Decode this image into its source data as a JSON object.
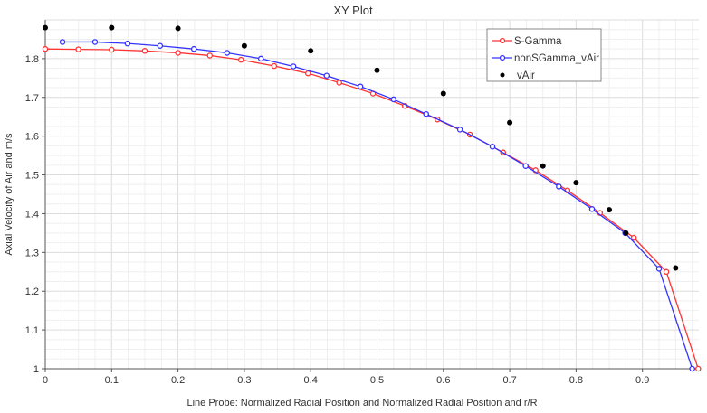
{
  "chart_data": {
    "type": "line",
    "title": "XY Plot",
    "xlabel": "Line Probe: Normalized Radial Position and Normalized Radial Position and r/R",
    "ylabel": "Axial Velocity of Air and m/s",
    "xlim": [
      0,
      0.985
    ],
    "ylim": [
      1.0,
      1.9
    ],
    "xticks": [
      "0",
      "0.1",
      "0.2",
      "0.3",
      "0.4",
      "0.5",
      "0.6",
      "0.7",
      "0.8",
      "0.9"
    ],
    "yticks": [
      "1",
      "1.1",
      "1.2",
      "1.3",
      "1.4",
      "1.5",
      "1.6",
      "1.7",
      "1.8"
    ],
    "grid": true,
    "legend_position": "top-right",
    "series": [
      {
        "name": "S-Gamma",
        "color": "#ff3333",
        "marker": "circle-open",
        "x": [
          0,
          0.05,
          0.1,
          0.15,
          0.2,
          0.248,
          0.295,
          0.345,
          0.396,
          0.443,
          0.494,
          0.542,
          0.591,
          0.64,
          0.69,
          0.739,
          0.787,
          0.836,
          0.887,
          0.936,
          0.984
        ],
        "y": [
          1.825,
          1.824,
          1.823,
          1.82,
          1.815,
          1.808,
          1.797,
          1.781,
          1.762,
          1.738,
          1.71,
          1.678,
          1.643,
          1.604,
          1.558,
          1.512,
          1.46,
          1.402,
          1.338,
          1.25,
          1.0
        ]
      },
      {
        "name": "nonSGamma_vAir",
        "color": "#3333ff",
        "marker": "circle-open",
        "x": [
          0.026,
          0.075,
          0.124,
          0.173,
          0.224,
          0.274,
          0.325,
          0.374,
          0.424,
          0.475,
          0.525,
          0.574,
          0.625,
          0.674,
          0.724,
          0.774,
          0.824,
          0.874,
          0.925,
          0.975
        ],
        "y": [
          1.843,
          1.843,
          1.839,
          1.833,
          1.825,
          1.815,
          1.8,
          1.78,
          1.756,
          1.728,
          1.695,
          1.657,
          1.617,
          1.573,
          1.523,
          1.47,
          1.412,
          1.35,
          1.258,
          1.0
        ]
      },
      {
        "name": "vAir",
        "color": "#000000",
        "marker": "dot",
        "x": [
          0,
          0.1,
          0.2,
          0.3,
          0.4,
          0.5,
          0.6,
          0.7,
          0.75,
          0.8,
          0.85,
          0.875,
          0.95
        ],
        "y": [
          1.88,
          1.88,
          1.878,
          1.833,
          1.82,
          1.77,
          1.71,
          1.635,
          1.523,
          1.48,
          1.41,
          1.35,
          1.26
        ]
      }
    ]
  }
}
